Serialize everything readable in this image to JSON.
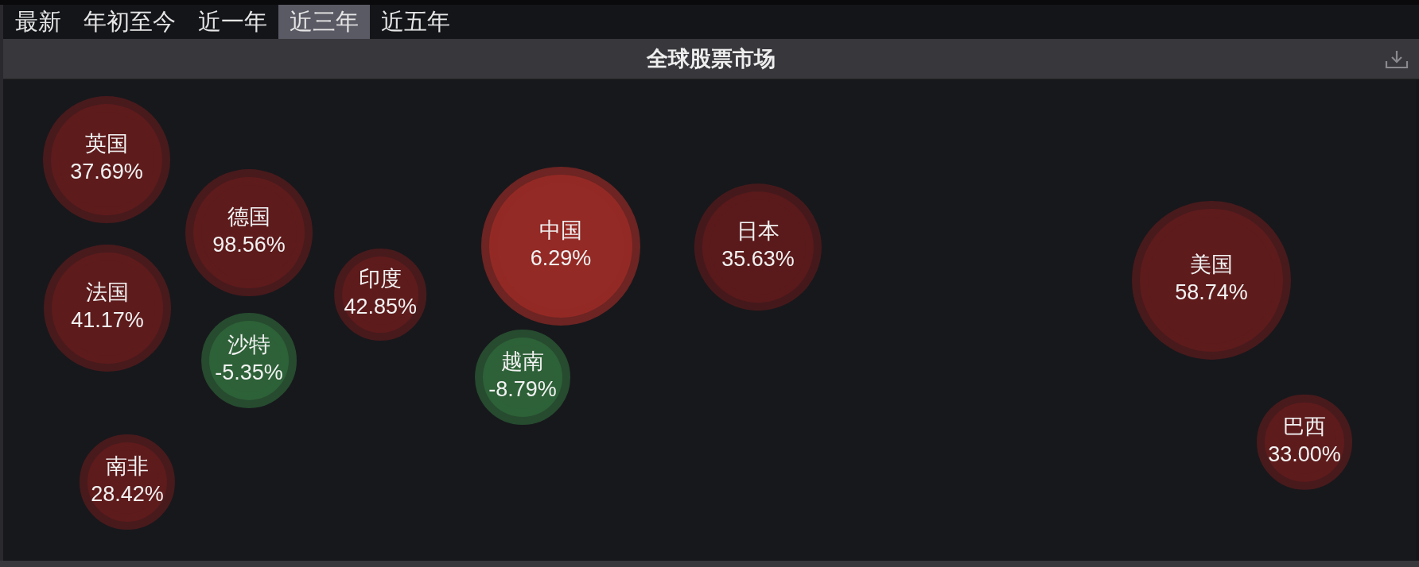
{
  "chart_data": {
    "type": "other",
    "title": "全球股票市场",
    "categories": [
      "英国",
      "德国",
      "法国",
      "沙特",
      "印度",
      "中国",
      "日本",
      "越南",
      "美国",
      "巴西",
      "南非"
    ],
    "values": [
      37.69,
      98.56,
      41.17,
      -5.35,
      42.85,
      6.29,
      35.63,
      -8.79,
      58.74,
      33.0,
      28.42
    ],
    "value_labels": [
      "37.69%",
      "98.56%",
      "41.17%",
      "-5.35%",
      "42.85%",
      "6.29%",
      "35.63%",
      "-8.79%",
      "58.74%",
      "33.00%",
      "28.42%"
    ],
    "colors": [
      "#5e1b1c",
      "#5e1b1c",
      "#5e1b1c",
      "#2e6138",
      "#5e1b1c",
      "#932a25",
      "#5a1a1b",
      "#2e6138",
      "#5e1b1c",
      "#5e1b1c",
      "#5e1b1c"
    ],
    "annotations": [
      "最新",
      "年初至今",
      "近一年",
      "近三年",
      "近五年"
    ]
  }
}
